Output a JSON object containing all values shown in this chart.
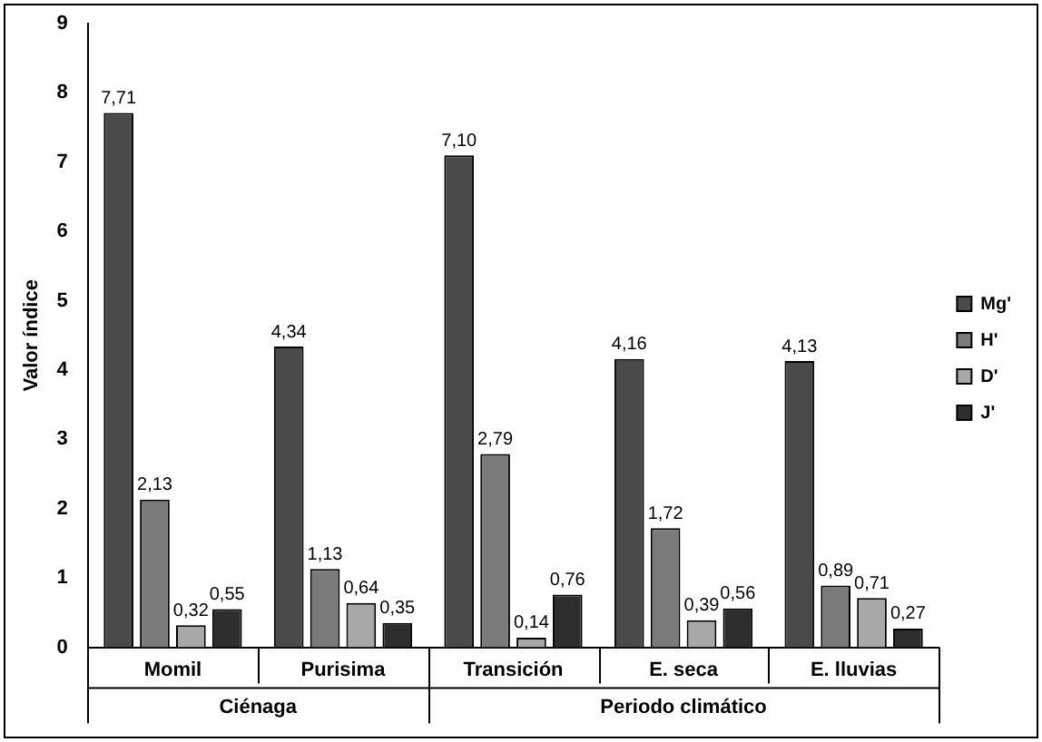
{
  "chart_data": {
    "type": "bar",
    "ylabel": "Valor índice",
    "categories": [
      "Momil",
      "Purisima",
      "Transición",
      "E. seca",
      "E. lluvias"
    ],
    "series": [
      {
        "name": "Mg'",
        "color": "#4a4a4a",
        "values": [
          7.71,
          4.34,
          7.1,
          4.16,
          4.13
        ],
        "value_labels": [
          "7,71",
          "4,34",
          "7,10",
          "4,16",
          "4,13"
        ]
      },
      {
        "name": "H'",
        "color": "#7a7a7a",
        "values": [
          2.13,
          1.13,
          2.79,
          1.72,
          0.89
        ],
        "value_labels": [
          "2,13",
          "1,13",
          "2,79",
          "1,72",
          "0,89"
        ]
      },
      {
        "name": "D'",
        "color": "#a8a8a8",
        "values": [
          0.32,
          0.64,
          0.14,
          0.39,
          0.71
        ],
        "value_labels": [
          "0,32",
          "0,64",
          "0,14",
          "0,39",
          "0,71"
        ]
      },
      {
        "name": "J'",
        "color": "#2e2e2e",
        "values": [
          0.55,
          0.35,
          0.76,
          0.56,
          0.27
        ],
        "value_labels": [
          "0,55",
          "0,35",
          "0,76",
          "0,56",
          "0,27"
        ]
      }
    ],
    "ylim": [
      0,
      9
    ],
    "yticks": [
      0,
      1,
      2,
      3,
      4,
      5,
      6,
      7,
      8,
      9
    ],
    "grid": false,
    "legend": "right",
    "annotations": [
      "Ciénaga",
      "Periodo climático"
    ]
  }
}
